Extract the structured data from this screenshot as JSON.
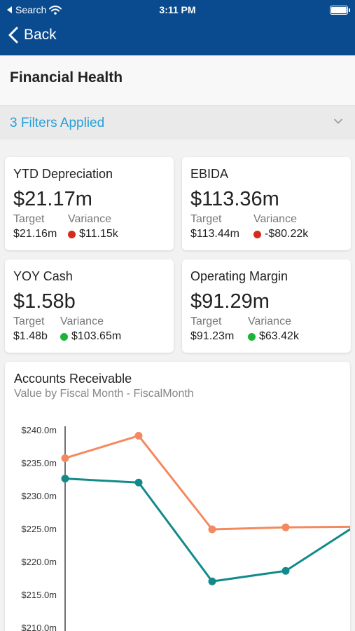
{
  "status_bar": {
    "back_app": "Search",
    "time": "3:11 PM"
  },
  "nav": {
    "back_label": "Back"
  },
  "page": {
    "title": "Financial Health"
  },
  "filters": {
    "label": "3 Filters Applied"
  },
  "kpis": [
    {
      "title": "YTD Depreciation",
      "value": "$21.17m",
      "target_label": "Target",
      "target": "$21.16m",
      "variance_label": "Variance",
      "variance": "$11.15k",
      "status": "negative",
      "status_color": "#d52b1e"
    },
    {
      "title": "EBIDA",
      "value": "$113.36m",
      "target_label": "Target",
      "target": "$113.44m",
      "variance_label": "Variance",
      "variance": "-$80.22k",
      "status": "negative",
      "status_color": "#d52b1e"
    },
    {
      "title": "YOY Cash",
      "value": "$1.58b",
      "target_label": "Target",
      "target": "$1.48b",
      "variance_label": "Variance",
      "variance": "$103.65m",
      "status": "positive",
      "status_color": "#1db33a"
    },
    {
      "title": "Operating Margin",
      "value": "$91.29m",
      "target_label": "Target",
      "target": "$91.23m",
      "variance_label": "Variance",
      "variance": "$63.42k",
      "status": "positive",
      "status_color": "#1db33a"
    }
  ],
  "chart": {
    "title": "Accounts Receivable",
    "subtitle": "Value by Fiscal Month - FiscalMonth"
  },
  "chart_data": {
    "type": "line",
    "title": "Accounts Receivable",
    "subtitle": "Value by Fiscal Month - FiscalMonth",
    "y_tick_labels": [
      "$240.0m",
      "$235.0m",
      "$230.0m",
      "$225.0m",
      "$220.0m",
      "$215.0m",
      "$210.0m"
    ],
    "y_ticks": [
      240,
      235,
      230,
      225,
      220,
      215,
      210
    ],
    "ylim": [
      210,
      240
    ],
    "x": [
      1,
      2,
      3,
      4,
      5
    ],
    "grid": false,
    "series": [
      {
        "color": "#f4895f",
        "values": [
          235.8,
          239.2,
          225.0,
          225.3,
          225.4
        ]
      },
      {
        "color": "#138a8a",
        "values": [
          232.7,
          232.1,
          217.1,
          218.7,
          225.9
        ]
      }
    ]
  },
  "colors": {
    "header": "#0a4b8f",
    "accent": "#2a9fd8"
  }
}
